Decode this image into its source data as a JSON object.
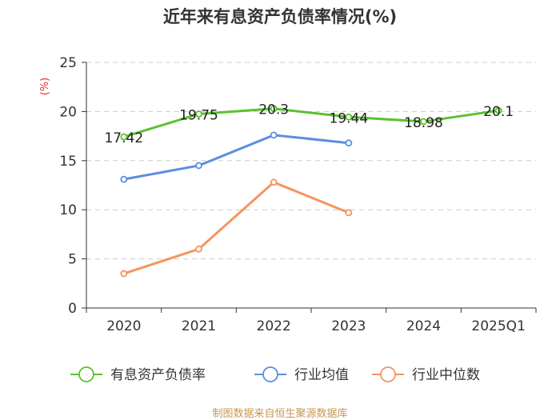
{
  "chart_data": {
    "type": "line",
    "title": "近年来有息资产负债率情况(%)",
    "ylabel": "(%)",
    "xlabel": "",
    "ylim": [
      0,
      25
    ],
    "yticks": [
      0,
      5,
      10,
      15,
      20,
      25
    ],
    "grid": true,
    "categories": [
      "2020",
      "2021",
      "2022",
      "2023",
      "2024",
      "2025Q1"
    ],
    "series": [
      {
        "name": "有息资产负债率",
        "color": "#5ac22f",
        "values": [
          17.42,
          19.75,
          20.3,
          19.44,
          18.98,
          20.1
        ],
        "labels": [
          "17.42",
          "19.75",
          "20.3",
          "19.44",
          "18.98",
          "20.1"
        ]
      },
      {
        "name": "行业均值",
        "color": "#5b8ee0",
        "values": [
          13.1,
          14.5,
          17.6,
          16.8,
          null,
          null
        ]
      },
      {
        "name": "行业中位数",
        "color": "#f59460",
        "values": [
          3.5,
          6.0,
          12.8,
          9.7,
          null,
          null
        ]
      }
    ],
    "legend_position": "bottom",
    "source": "制图数据来自恒生聚源数据库"
  }
}
